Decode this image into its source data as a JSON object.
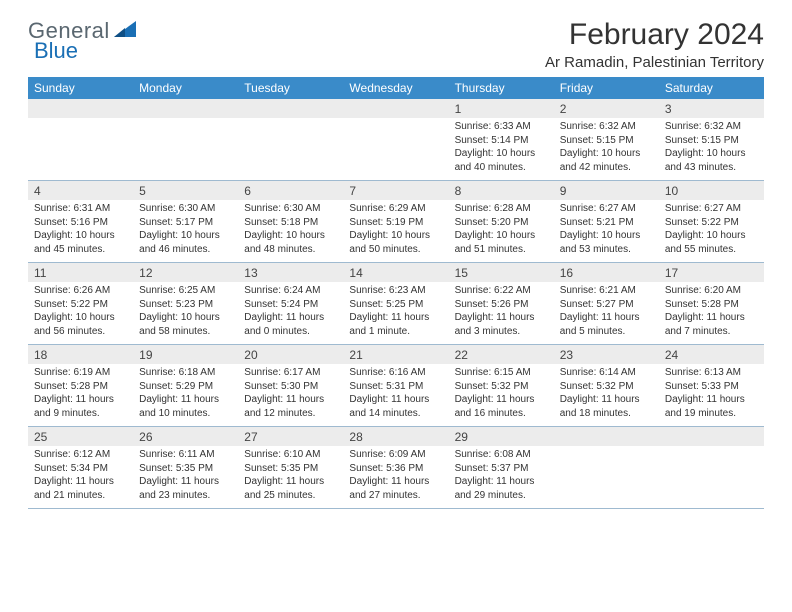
{
  "brand": {
    "word1": "General",
    "word2": "Blue",
    "sail_color": "#1a6fb5",
    "text_color_1": "#5a6770",
    "text_color_2": "#1a6fb5"
  },
  "title": "February 2024",
  "location": "Ar Ramadin, Palestinian Territory",
  "header_bg": "#3a8bc9",
  "daynum_bg": "#ececec",
  "border_color": "#9fbad0",
  "weekdays": [
    "Sunday",
    "Monday",
    "Tuesday",
    "Wednesday",
    "Thursday",
    "Friday",
    "Saturday"
  ],
  "weeks": [
    [
      null,
      null,
      null,
      null,
      {
        "n": "1",
        "sunrise": "6:33 AM",
        "sunset": "5:14 PM",
        "daylight": "10 hours and 40 minutes."
      },
      {
        "n": "2",
        "sunrise": "6:32 AM",
        "sunset": "5:15 PM",
        "daylight": "10 hours and 42 minutes."
      },
      {
        "n": "3",
        "sunrise": "6:32 AM",
        "sunset": "5:15 PM",
        "daylight": "10 hours and 43 minutes."
      }
    ],
    [
      {
        "n": "4",
        "sunrise": "6:31 AM",
        "sunset": "5:16 PM",
        "daylight": "10 hours and 45 minutes."
      },
      {
        "n": "5",
        "sunrise": "6:30 AM",
        "sunset": "5:17 PM",
        "daylight": "10 hours and 46 minutes."
      },
      {
        "n": "6",
        "sunrise": "6:30 AM",
        "sunset": "5:18 PM",
        "daylight": "10 hours and 48 minutes."
      },
      {
        "n": "7",
        "sunrise": "6:29 AM",
        "sunset": "5:19 PM",
        "daylight": "10 hours and 50 minutes."
      },
      {
        "n": "8",
        "sunrise": "6:28 AM",
        "sunset": "5:20 PM",
        "daylight": "10 hours and 51 minutes."
      },
      {
        "n": "9",
        "sunrise": "6:27 AM",
        "sunset": "5:21 PM",
        "daylight": "10 hours and 53 minutes."
      },
      {
        "n": "10",
        "sunrise": "6:27 AM",
        "sunset": "5:22 PM",
        "daylight": "10 hours and 55 minutes."
      }
    ],
    [
      {
        "n": "11",
        "sunrise": "6:26 AM",
        "sunset": "5:22 PM",
        "daylight": "10 hours and 56 minutes."
      },
      {
        "n": "12",
        "sunrise": "6:25 AM",
        "sunset": "5:23 PM",
        "daylight": "10 hours and 58 minutes."
      },
      {
        "n": "13",
        "sunrise": "6:24 AM",
        "sunset": "5:24 PM",
        "daylight": "11 hours and 0 minutes."
      },
      {
        "n": "14",
        "sunrise": "6:23 AM",
        "sunset": "5:25 PM",
        "daylight": "11 hours and 1 minute."
      },
      {
        "n": "15",
        "sunrise": "6:22 AM",
        "sunset": "5:26 PM",
        "daylight": "11 hours and 3 minutes."
      },
      {
        "n": "16",
        "sunrise": "6:21 AM",
        "sunset": "5:27 PM",
        "daylight": "11 hours and 5 minutes."
      },
      {
        "n": "17",
        "sunrise": "6:20 AM",
        "sunset": "5:28 PM",
        "daylight": "11 hours and 7 minutes."
      }
    ],
    [
      {
        "n": "18",
        "sunrise": "6:19 AM",
        "sunset": "5:28 PM",
        "daylight": "11 hours and 9 minutes."
      },
      {
        "n": "19",
        "sunrise": "6:18 AM",
        "sunset": "5:29 PM",
        "daylight": "11 hours and 10 minutes."
      },
      {
        "n": "20",
        "sunrise": "6:17 AM",
        "sunset": "5:30 PM",
        "daylight": "11 hours and 12 minutes."
      },
      {
        "n": "21",
        "sunrise": "6:16 AM",
        "sunset": "5:31 PM",
        "daylight": "11 hours and 14 minutes."
      },
      {
        "n": "22",
        "sunrise": "6:15 AM",
        "sunset": "5:32 PM",
        "daylight": "11 hours and 16 minutes."
      },
      {
        "n": "23",
        "sunrise": "6:14 AM",
        "sunset": "5:32 PM",
        "daylight": "11 hours and 18 minutes."
      },
      {
        "n": "24",
        "sunrise": "6:13 AM",
        "sunset": "5:33 PM",
        "daylight": "11 hours and 19 minutes."
      }
    ],
    [
      {
        "n": "25",
        "sunrise": "6:12 AM",
        "sunset": "5:34 PM",
        "daylight": "11 hours and 21 minutes."
      },
      {
        "n": "26",
        "sunrise": "6:11 AM",
        "sunset": "5:35 PM",
        "daylight": "11 hours and 23 minutes."
      },
      {
        "n": "27",
        "sunrise": "6:10 AM",
        "sunset": "5:35 PM",
        "daylight": "11 hours and 25 minutes."
      },
      {
        "n": "28",
        "sunrise": "6:09 AM",
        "sunset": "5:36 PM",
        "daylight": "11 hours and 27 minutes."
      },
      {
        "n": "29",
        "sunrise": "6:08 AM",
        "sunset": "5:37 PM",
        "daylight": "11 hours and 29 minutes."
      },
      null,
      null
    ]
  ]
}
